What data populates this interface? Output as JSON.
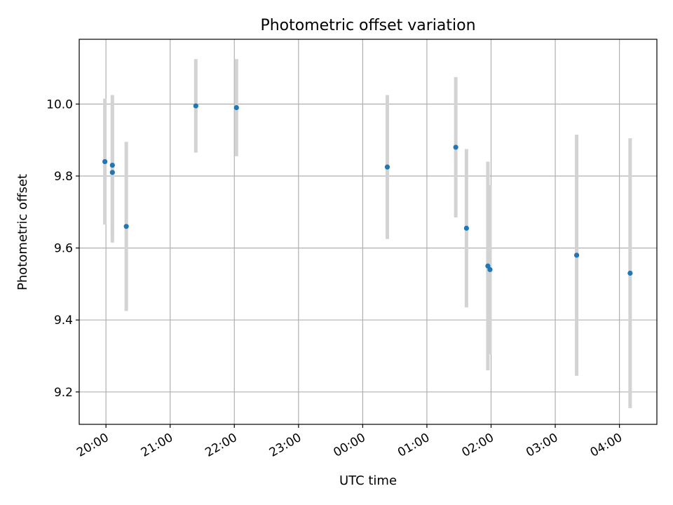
{
  "chart_data": {
    "type": "scatter",
    "title": "Photometric offset variation",
    "xlabel": "UTC time",
    "ylabel": "Photometric offset",
    "x_tick_labels": [
      "20:00",
      "21:00",
      "22:00",
      "23:00",
      "00:00",
      "01:00",
      "02:00",
      "03:00",
      "04:00"
    ],
    "y_tick_labels": [
      "9.2",
      "9.4",
      "9.6",
      "9.8",
      "10.0"
    ],
    "y_ticks": [
      9.2,
      9.4,
      9.6,
      9.8,
      10.0
    ],
    "xlim": [
      "19:35",
      "04:35"
    ],
    "ylim": [
      9.11,
      10.18
    ],
    "grid": true,
    "colors": {
      "points": "#1f77b4",
      "error_bars": "#d3d3d3",
      "grid": "#b0b0b0"
    },
    "points": [
      {
        "x": "19:59",
        "y": 9.84,
        "err": 0.175
      },
      {
        "x": "20:06",
        "y": 9.83,
        "err": 0.195
      },
      {
        "x": "20:06",
        "y": 9.81,
        "err": 0.195
      },
      {
        "x": "20:19",
        "y": 9.66,
        "err": 0.235
      },
      {
        "x": "21:24",
        "y": 9.995,
        "err": 0.13
      },
      {
        "x": "22:02",
        "y": 9.99,
        "err": 0.135
      },
      {
        "x": "00:23",
        "y": 9.825,
        "err": 0.2
      },
      {
        "x": "01:27",
        "y": 9.88,
        "err": 0.195
      },
      {
        "x": "01:37",
        "y": 9.655,
        "err": 0.22
      },
      {
        "x": "01:57",
        "y": 9.55,
        "err": 0.29
      },
      {
        "x": "01:59",
        "y": 9.54,
        "err": 0.235
      },
      {
        "x": "03:20",
        "y": 9.58,
        "err": 0.335
      },
      {
        "x": "04:10",
        "y": 9.53,
        "err": 0.375
      }
    ]
  }
}
